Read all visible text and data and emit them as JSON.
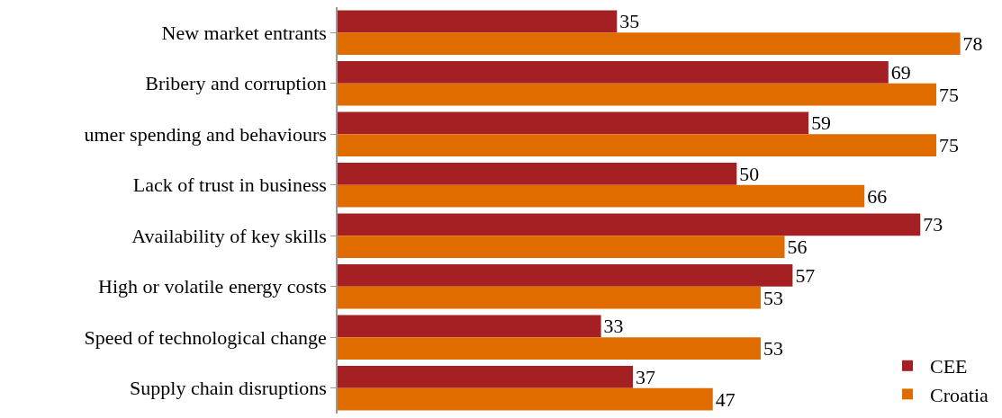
{
  "chart_data": {
    "type": "bar",
    "orientation": "horizontal",
    "categories": [
      "New market entrants",
      "Bribery and corruption",
      "umer spending and behaviours",
      "Lack of trust in business",
      "Availability of key skills",
      "High or volatile energy costs",
      "Speed of technological change",
      "Supply chain disruptions"
    ],
    "series": [
      {
        "name": "CEE",
        "color": "#a52022",
        "values": [
          35,
          69,
          59,
          50,
          73,
          57,
          33,
          37
        ]
      },
      {
        "name": "Croatia",
        "color": "#e06c00",
        "values": [
          78,
          75,
          75,
          66,
          56,
          53,
          53,
          47
        ]
      }
    ],
    "data_labels": true,
    "legend": "bottom right",
    "tick_labels": "y"
  }
}
